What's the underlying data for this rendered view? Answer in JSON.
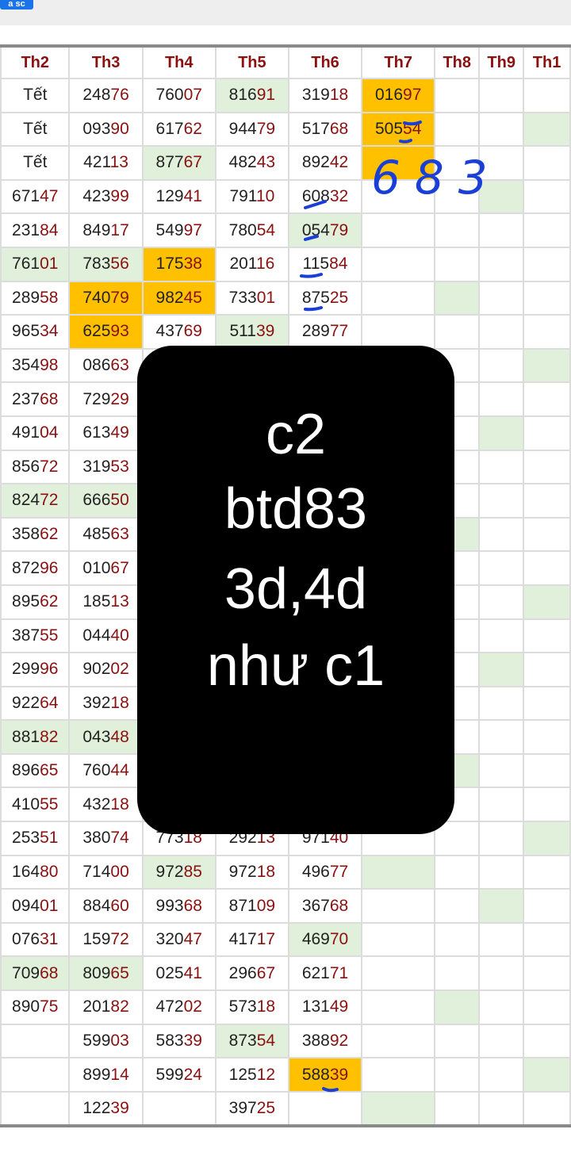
{
  "toolbar": {
    "button_label": "a sc"
  },
  "colors": {
    "header_text": "#8b1010",
    "digit_highlight": "#8b1010",
    "green_cell": "#e0f0da",
    "orange_cell": "#ffc000",
    "ink": "#1a3fd6",
    "overlay": "#000000"
  },
  "table": {
    "headers": [
      "Th2",
      "Th3",
      "Th4",
      "Th5",
      "Th6",
      "Th7",
      "Th8",
      "Th9",
      "Th1"
    ],
    "rows": [
      {
        "cells": [
          "Tết",
          "24876",
          "76007",
          "81691",
          "31918",
          "01697",
          "",
          "",
          ""
        ],
        "bg": [
          "",
          "",
          "",
          "g",
          "",
          "o",
          "",
          "",
          ""
        ]
      },
      {
        "cells": [
          "Tết",
          "09390",
          "61762",
          "94479",
          "51768",
          "50554",
          "",
          "",
          ""
        ],
        "bg": [
          "",
          "",
          "",
          "",
          "",
          "o",
          "",
          "",
          "g"
        ]
      },
      {
        "cells": [
          "Tết",
          "42113",
          "87767",
          "48243",
          "89242",
          "",
          "",
          "",
          ""
        ],
        "bg": [
          "",
          "",
          "g",
          "",
          "",
          "o",
          "",
          "",
          ""
        ]
      },
      {
        "cells": [
          "67147",
          "42399",
          "12941",
          "79110",
          "60832",
          "",
          "",
          "",
          ""
        ],
        "bg": [
          "",
          "",
          "",
          "",
          "",
          "",
          "",
          "g",
          ""
        ]
      },
      {
        "cells": [
          "23184",
          "84917",
          "54997",
          "78054",
          "05479",
          "",
          "",
          "",
          ""
        ],
        "bg": [
          "",
          "",
          "",
          "",
          "g",
          "",
          "",
          "",
          ""
        ]
      },
      {
        "cells": [
          "76101",
          "78356",
          "17538",
          "20116",
          "11584",
          "",
          "",
          "",
          ""
        ],
        "bg": [
          "g",
          "g",
          "o",
          "",
          "",
          "",
          "",
          "",
          ""
        ]
      },
      {
        "cells": [
          "28958",
          "74079",
          "98245",
          "73301",
          "87525",
          "",
          "",
          "",
          ""
        ],
        "bg": [
          "",
          "o",
          "o",
          "",
          "",
          "",
          "g",
          "",
          ""
        ]
      },
      {
        "cells": [
          "96534",
          "62593",
          "43769",
          "51139",
          "28977",
          "",
          "",
          "",
          ""
        ],
        "bg": [
          "",
          "o",
          "",
          "g",
          "",
          "",
          "",
          "",
          ""
        ]
      },
      {
        "cells": [
          "35498",
          "08663",
          "",
          "",
          "",
          "",
          "",
          "",
          ""
        ],
        "bg": [
          "",
          "",
          "",
          "",
          "",
          "",
          "",
          "",
          "g"
        ]
      },
      {
        "cells": [
          "23768",
          "72929",
          "",
          "",
          "",
          "",
          "",
          "",
          ""
        ],
        "bg": [
          "",
          "",
          "",
          "",
          "",
          "",
          "",
          "",
          ""
        ]
      },
      {
        "cells": [
          "49104",
          "61349",
          "",
          "",
          "",
          "",
          "",
          "",
          ""
        ],
        "bg": [
          "",
          "",
          "",
          "",
          "",
          "",
          "",
          "g",
          ""
        ]
      },
      {
        "cells": [
          "85672",
          "31953",
          "",
          "",
          "",
          "",
          "",
          "",
          ""
        ],
        "bg": [
          "",
          "",
          "",
          "",
          "",
          "",
          "",
          "",
          ""
        ]
      },
      {
        "cells": [
          "82472",
          "66650",
          "",
          "",
          "",
          "",
          "",
          "",
          ""
        ],
        "bg": [
          "g",
          "g",
          "",
          "",
          "",
          "",
          "",
          "",
          ""
        ]
      },
      {
        "cells": [
          "35862",
          "48563",
          "",
          "",
          "",
          "",
          "",
          "",
          ""
        ],
        "bg": [
          "",
          "",
          "",
          "",
          "",
          "",
          "g",
          "",
          ""
        ]
      },
      {
        "cells": [
          "87296",
          "01067",
          "",
          "",
          "",
          "",
          "",
          "",
          ""
        ],
        "bg": [
          "",
          "",
          "",
          "",
          "",
          "",
          "",
          "",
          ""
        ]
      },
      {
        "cells": [
          "89562",
          "18513",
          "",
          "",
          "",
          "",
          "",
          "",
          ""
        ],
        "bg": [
          "",
          "",
          "",
          "",
          "",
          "",
          "",
          "",
          "g"
        ]
      },
      {
        "cells": [
          "38755",
          "04440",
          "",
          "",
          "",
          "",
          "",
          "",
          ""
        ],
        "bg": [
          "",
          "",
          "",
          "",
          "",
          "",
          "",
          "",
          ""
        ]
      },
      {
        "cells": [
          "29996",
          "90202",
          "",
          "",
          "",
          "",
          "",
          "",
          ""
        ],
        "bg": [
          "",
          "",
          "",
          "",
          "",
          "",
          "",
          "g",
          ""
        ]
      },
      {
        "cells": [
          "92264",
          "39218",
          "",
          "",
          "",
          "",
          "",
          "",
          ""
        ],
        "bg": [
          "",
          "",
          "",
          "",
          "",
          "",
          "",
          "",
          ""
        ]
      },
      {
        "cells": [
          "88182",
          "04348",
          "",
          "",
          "",
          "",
          "",
          "",
          ""
        ],
        "bg": [
          "g",
          "g",
          "",
          "",
          "",
          "",
          "",
          "",
          ""
        ]
      },
      {
        "cells": [
          "89665",
          "76044",
          "",
          "",
          "",
          "",
          "",
          "",
          ""
        ],
        "bg": [
          "",
          "",
          "",
          "",
          "",
          "",
          "g",
          "",
          ""
        ]
      },
      {
        "cells": [
          "41055",
          "43218",
          "",
          "",
          "",
          "",
          "",
          "",
          ""
        ],
        "bg": [
          "",
          "",
          "",
          "",
          "",
          "",
          "",
          "",
          ""
        ]
      },
      {
        "cells": [
          "25351",
          "38074",
          "77318",
          "29213",
          "97140",
          "",
          "",
          "",
          ""
        ],
        "bg": [
          "",
          "",
          "",
          "",
          "",
          "",
          "",
          "",
          "g"
        ]
      },
      {
        "cells": [
          "16480",
          "71400",
          "97285",
          "97218",
          "49677",
          "",
          "",
          "",
          ""
        ],
        "bg": [
          "",
          "",
          "g",
          "",
          "",
          "g",
          "",
          "",
          ""
        ]
      },
      {
        "cells": [
          "09401",
          "88460",
          "99368",
          "87109",
          "36768",
          "",
          "",
          "",
          ""
        ],
        "bg": [
          "",
          "",
          "",
          "",
          "",
          "",
          "",
          "g",
          ""
        ]
      },
      {
        "cells": [
          "07631",
          "15972",
          "32047",
          "41717",
          "46970",
          "",
          "",
          "",
          ""
        ],
        "bg": [
          "",
          "",
          "",
          "",
          "g",
          "",
          "",
          "",
          ""
        ]
      },
      {
        "cells": [
          "70968",
          "80965",
          "02541",
          "29667",
          "62171",
          "",
          "",
          "",
          ""
        ],
        "bg": [
          "g",
          "g",
          "",
          "",
          "",
          "",
          "",
          "",
          ""
        ]
      },
      {
        "cells": [
          "89075",
          "20182",
          "47202",
          "57318",
          "13149",
          "",
          "",
          "",
          ""
        ],
        "bg": [
          "",
          "",
          "",
          "",
          "",
          "",
          "g",
          "",
          ""
        ]
      },
      {
        "cells": [
          "",
          "59903",
          "58339",
          "87354",
          "38892",
          "",
          "",
          "",
          ""
        ],
        "bg": [
          "",
          "",
          "",
          "g",
          "",
          "",
          "",
          "",
          ""
        ]
      },
      {
        "cells": [
          "",
          "89914",
          "59924",
          "12512",
          "58839",
          "",
          "",
          "",
          ""
        ],
        "bg": [
          "",
          "",
          "",
          "",
          "o",
          "",
          "",
          "",
          "g"
        ]
      },
      {
        "cells": [
          "",
          "12239",
          "",
          "39725",
          "",
          "",
          "",
          "",
          ""
        ],
        "bg": [
          "",
          "",
          "",
          "",
          "",
          "g",
          "",
          "",
          ""
        ]
      }
    ]
  },
  "overlay": {
    "lines": [
      "c2",
      "btd83",
      "3d,4d",
      "như c1"
    ]
  },
  "handwriting": {
    "text": "683"
  }
}
